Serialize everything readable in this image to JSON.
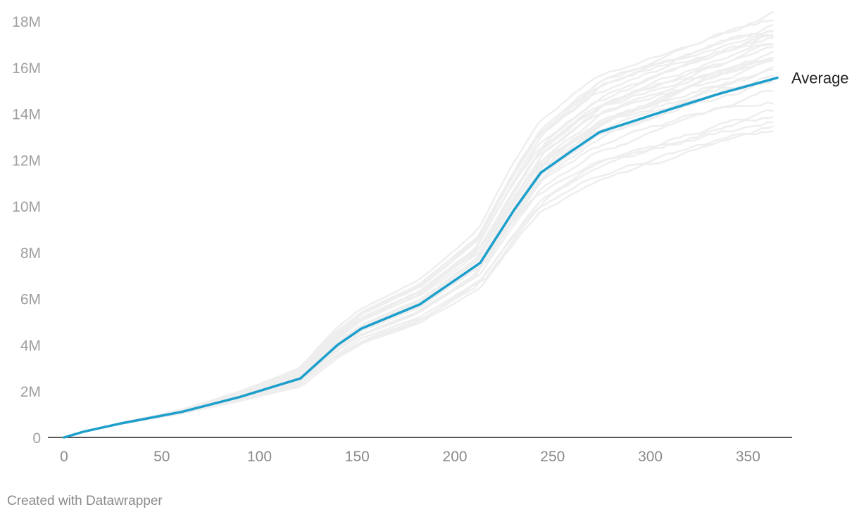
{
  "chart_data": {
    "type": "line",
    "xlim": [
      0,
      365
    ],
    "ylim": [
      0,
      18000000
    ],
    "x_ticks": [
      {
        "value": 0,
        "label": "0"
      },
      {
        "value": 50,
        "label": "50"
      },
      {
        "value": 100,
        "label": "100"
      },
      {
        "value": 150,
        "label": "150"
      },
      {
        "value": 200,
        "label": "200"
      },
      {
        "value": 250,
        "label": "250"
      },
      {
        "value": 300,
        "label": "300"
      },
      {
        "value": 350,
        "label": "350"
      }
    ],
    "y_ticks": [
      {
        "value": 0,
        "label": "0"
      },
      {
        "value": 2000000,
        "label": "2M"
      },
      {
        "value": 4000000,
        "label": "4M"
      },
      {
        "value": 6000000,
        "label": "6M"
      },
      {
        "value": 8000000,
        "label": "8M"
      },
      {
        "value": 10000000,
        "label": "10M"
      },
      {
        "value": 12000000,
        "label": "12M"
      },
      {
        "value": 14000000,
        "label": "14M"
      },
      {
        "value": 16000000,
        "label": "16M"
      },
      {
        "value": 18000000,
        "label": "18M"
      }
    ],
    "grid": false,
    "background_series_count": 30,
    "background_series_color": "#eeeeee",
    "highlight_series": {
      "name": "Average",
      "color": "#1d9fcc",
      "points": [
        [
          0,
          0
        ],
        [
          10,
          250000
        ],
        [
          30,
          620000
        ],
        [
          60,
          1100000
        ],
        [
          90,
          1750000
        ],
        [
          121,
          2550000
        ],
        [
          140,
          4000000
        ],
        [
          152,
          4700000
        ],
        [
          182,
          5750000
        ],
        [
          213,
          7550000
        ],
        [
          230,
          9800000
        ],
        [
          244,
          11450000
        ],
        [
          260,
          12400000
        ],
        [
          274,
          13200000
        ],
        [
          305,
          14050000
        ],
        [
          335,
          14850000
        ],
        [
          365,
          15550000
        ]
      ]
    }
  },
  "footer": {
    "credit": "Created with Datawrapper"
  }
}
